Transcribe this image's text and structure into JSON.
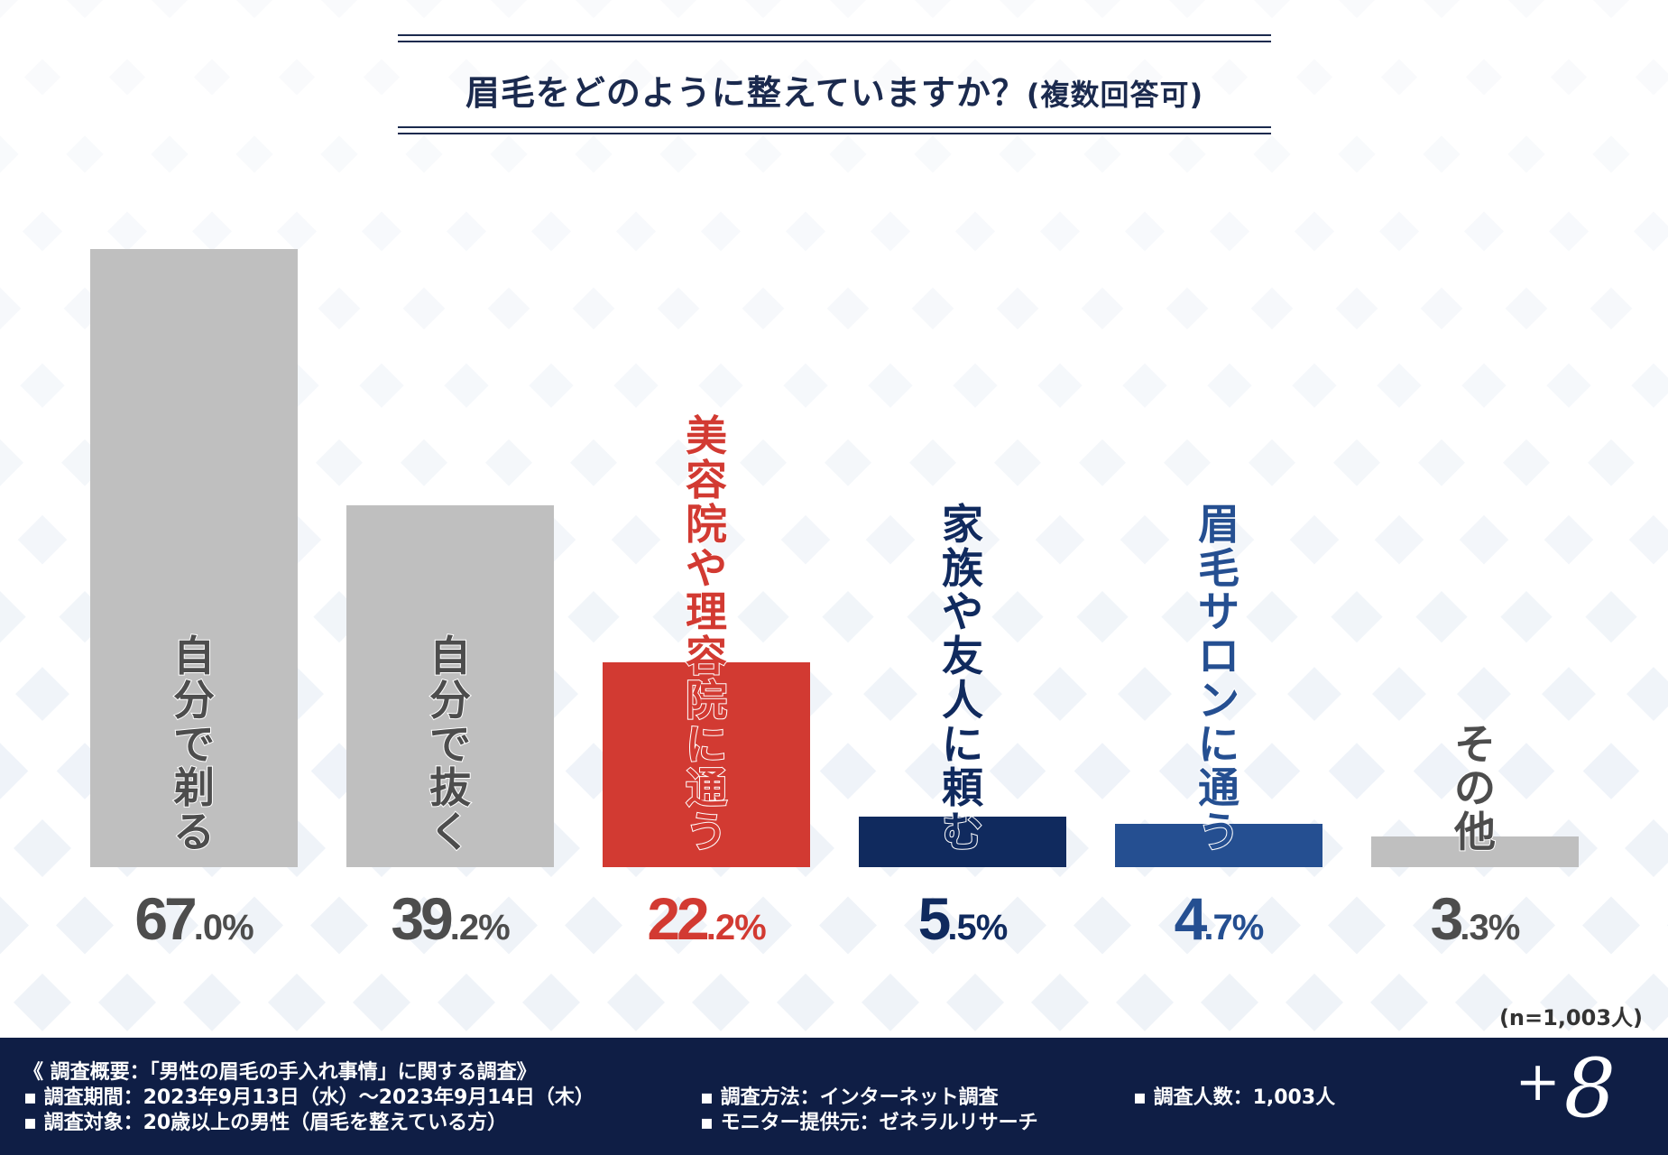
{
  "title": {
    "main": "眉毛をどのように整えていますか？",
    "sub": "(複数回答可)"
  },
  "colors": {
    "gray": "#bfbfbf",
    "red": "#d23a32",
    "navy": "#102a5e",
    "blue": "#254f91",
    "label_gray": "#4d4d4d",
    "footer_bg": "#0f1e45"
  },
  "chart_data": {
    "type": "bar",
    "title": "眉毛をどのように整えていますか？(複数回答可)",
    "categories": [
      "自分で剃る",
      "自分で抜く",
      "美容院や理容院に通う",
      "家族や友人に頼む",
      "眉毛サロンに通う",
      "その他"
    ],
    "values": [
      67.0,
      39.2,
      22.2,
      5.5,
      4.7,
      3.3
    ],
    "value_labels": [
      {
        "int": "67",
        "dec": ".0%"
      },
      {
        "int": "39",
        "dec": ".2%"
      },
      {
        "int": "22",
        "dec": ".2%"
      },
      {
        "int": "5",
        "dec": ".5%"
      },
      {
        "int": "4",
        "dec": ".7%"
      },
      {
        "int": "3",
        "dec": ".3%"
      }
    ],
    "bar_colors": [
      "#bfbfbf",
      "#bfbfbf",
      "#d23a32",
      "#102a5e",
      "#254f91",
      "#bfbfbf"
    ],
    "label_colors": [
      "#4d4d4d",
      "#4d4d4d",
      "#d23a32",
      "#102a5e",
      "#254f91",
      "#4d4d4d"
    ],
    "ylim": [
      0,
      67
    ],
    "grid": false,
    "xlabel": "",
    "ylabel": ""
  },
  "sample": "(n=1,003人)",
  "footer": {
    "overview": "《 調査概要：「男性の眉毛の手入れ事情」に関する調査》",
    "period": "▪ 調査期間：2023年9月13日（水）～2023年9月14日（木）",
    "method": "▪ 調査方法：インターネット調査",
    "count": "▪ 調査人数：1,003人",
    "target": "▪ 調査対象：20歳以上の男性（眉毛を整えている方）",
    "monitor": "▪ モニター提供元：ゼネラルリサーチ",
    "logo_plus": "+",
    "logo_mark": "8"
  }
}
